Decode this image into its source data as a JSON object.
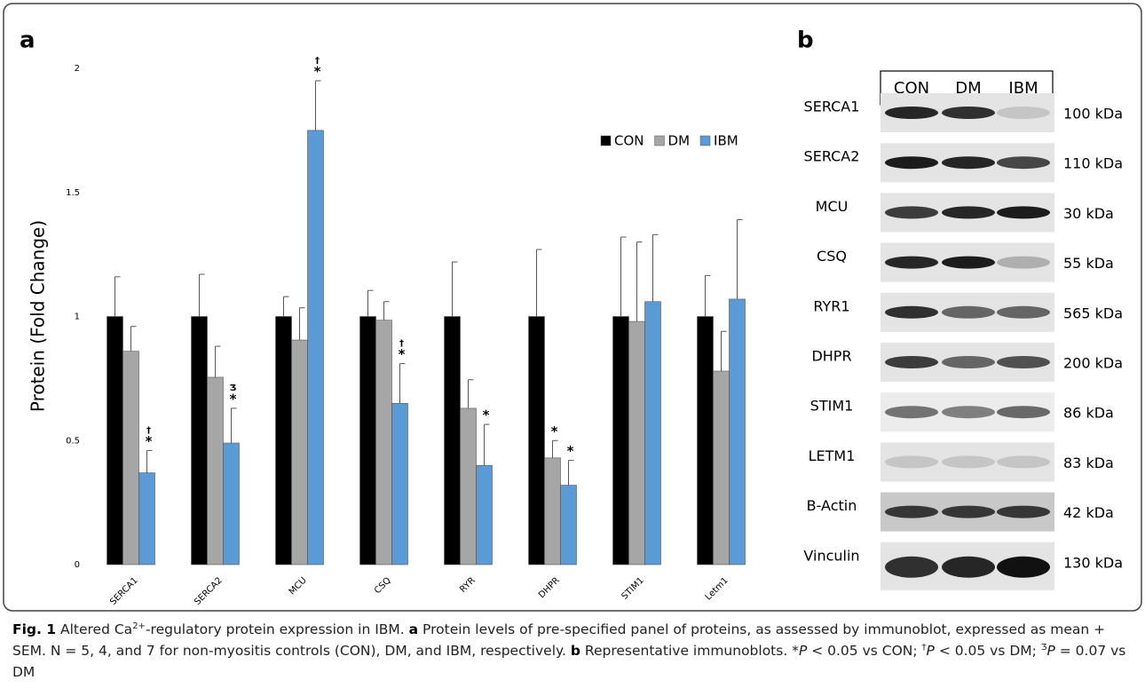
{
  "chart_data": {
    "type": "bar",
    "panel_label": "a",
    "y_label": "Protein (Fold Change)",
    "categories": [
      "SERCA1",
      "SERCA2",
      "MCU",
      "CSQ",
      "RYR",
      "DHPR",
      "STIM1",
      "Letm1"
    ],
    "series": [
      {
        "name": "CON",
        "color": "#000000",
        "values": [
          1,
          1,
          1,
          1,
          1,
          1,
          1,
          1
        ],
        "errors": [
          0.16,
          0.17,
          0.08,
          0.105,
          0.22,
          0.27,
          0.32,
          0.165
        ],
        "markers": [
          null,
          null,
          null,
          null,
          null,
          null,
          null,
          null
        ]
      },
      {
        "name": "DM",
        "color": "#a6a6a6",
        "values": [
          0.86,
          0.755,
          0.905,
          0.985,
          0.63,
          0.43,
          0.98,
          0.78
        ],
        "errors": [
          0.1,
          0.125,
          0.13,
          0.075,
          0.115,
          0.07,
          0.32,
          0.16
        ],
        "markers": [
          null,
          null,
          null,
          null,
          null,
          [
            "*"
          ],
          null,
          null
        ]
      },
      {
        "name": "IBM",
        "color": "#5b9bd5",
        "values": [
          0.37,
          0.49,
          1.75,
          0.65,
          0.4,
          0.32,
          1.06,
          1.07
        ],
        "errors": [
          0.09,
          0.14,
          0.2,
          0.16,
          0.165,
          0.1,
          0.27,
          0.32
        ],
        "markers": [
          [
            "†",
            "*"
          ],
          [
            "Ʒ",
            "*"
          ],
          [
            "†",
            "*"
          ],
          [
            "†",
            "*"
          ],
          [
            "*"
          ],
          [
            "*"
          ],
          null,
          null
        ]
      }
    ],
    "ylim": [
      0,
      2
    ],
    "yticks": [
      0,
      0.5,
      1,
      1.5,
      2
    ],
    "grid": false
  },
  "blots": {
    "panel_label": "b",
    "lanes": [
      "CON",
      "DM",
      "IBM"
    ],
    "rows": [
      {
        "protein": "SERCA1",
        "size": "100 kDa"
      },
      {
        "protein": "SERCA2",
        "size": "110 kDa"
      },
      {
        "protein": "MCU",
        "size": "30 kDa"
      },
      {
        "protein": "CSQ",
        "size": "55 kDa"
      },
      {
        "protein": "RYR1",
        "size": "565 kDa"
      },
      {
        "protein": "DHPR",
        "size": "200 kDa"
      },
      {
        "protein": "STIM1",
        "size": "86 kDa"
      },
      {
        "protein": "LETM1",
        "size": "83 kDa"
      },
      {
        "protein": "B-Actin",
        "size": "42 kDa"
      },
      {
        "protein": "Vinculin",
        "size": "130 kDa"
      }
    ]
  },
  "caption": [
    {
      "text": "Fig. 1",
      "style": "bold"
    },
    {
      "text": " Altered Ca",
      "style": "plain"
    },
    {
      "text": "2+",
      "style": "sup"
    },
    {
      "text": "-regulatory protein expression in IBM. ",
      "style": "plain"
    },
    {
      "text": "a",
      "style": "bold"
    },
    {
      "text": " Protein levels of pre-specified panel of proteins, as assessed by immunoblot, expressed as mean + SEM. N = 5, 4, and 7 for non-myositis controls (CON), DM, and IBM, respectively. ",
      "style": "plain"
    },
    {
      "text": "b",
      "style": "bold"
    },
    {
      "text": " Representative immunoblots. *",
      "style": "plain"
    },
    {
      "text": "P",
      "style": "italic"
    },
    {
      "text": " < 0.05 vs CON; ",
      "style": "plain"
    },
    {
      "text": "†",
      "style": "sup"
    },
    {
      "text": "P",
      "style": "italic"
    },
    {
      "text": " < 0.05 vs DM; ",
      "style": "plain"
    },
    {
      "text": "Ʒ",
      "style": "sup"
    },
    {
      "text": "P",
      "style": "italic"
    },
    {
      "text": " = 0.07 vs DM",
      "style": "plain"
    }
  ]
}
